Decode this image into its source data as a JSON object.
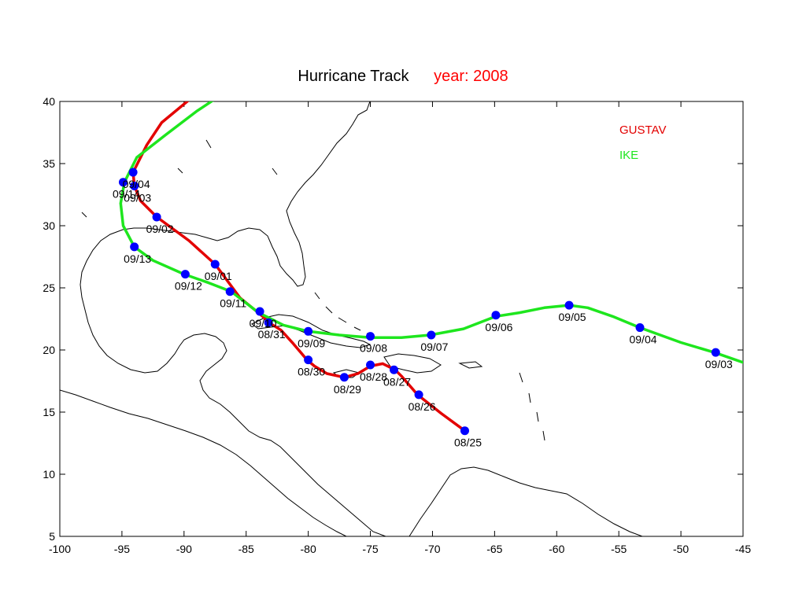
{
  "title": {
    "main": "Hurricane  Track",
    "year": "year: 2008"
  },
  "colors": {
    "gustav": "#e30000",
    "ike": "#1ee61e",
    "marker": "#0000ff",
    "year": "#ff0000"
  },
  "chart_data": {
    "type": "line",
    "xlim": [
      -100,
      -45
    ],
    "ylim": [
      5,
      40
    ],
    "x_ticks": [
      "-100",
      "-95",
      "-90",
      "-85",
      "-80",
      "-75",
      "-70",
      "-65",
      "-60",
      "-55",
      "-50",
      "-45"
    ],
    "y_ticks": [
      "5",
      "10",
      "15",
      "20",
      "25",
      "30",
      "35",
      "40"
    ],
    "legend": {
      "placement": "top-right"
    },
    "series": [
      {
        "name": "GUSTAV",
        "color": "#e30000",
        "track": [
          [
            -67.4,
            13.5
          ],
          [
            -69.3,
            14.9
          ],
          [
            -71.2,
            16.4
          ],
          [
            -72.5,
            17.9
          ],
          [
            -73.0,
            18.4
          ],
          [
            -74.0,
            18.9
          ],
          [
            -75.0,
            18.7
          ],
          [
            -76.0,
            18.1
          ],
          [
            -77.1,
            17.8
          ],
          [
            -78.5,
            18.1
          ],
          [
            -79.5,
            18.7
          ],
          [
            -80.1,
            19.2
          ],
          [
            -81.2,
            20.5
          ],
          [
            -82.2,
            21.6
          ],
          [
            -83.0,
            22.1
          ],
          [
            -83.9,
            22.9
          ],
          [
            -85.5,
            24.2
          ],
          [
            -87.5,
            26.9
          ],
          [
            -89.6,
            28.8
          ],
          [
            -92.2,
            30.7
          ],
          [
            -93.5,
            32.0
          ],
          [
            -94.0,
            33.2
          ],
          [
            -94.1,
            34.3
          ],
          [
            -93.0,
            36.5
          ],
          [
            -91.8,
            38.3
          ],
          [
            -89.5,
            40.2
          ]
        ],
        "points": [
          {
            "label": "08/25",
            "lon": -67.4,
            "lat": 13.5
          },
          {
            "label": "08/26",
            "lon": -71.1,
            "lat": 16.4
          },
          {
            "label": "08/27",
            "lon": -73.1,
            "lat": 18.4
          },
          {
            "label": "08/28",
            "lon": -75.0,
            "lat": 18.8
          },
          {
            "label": "08/29",
            "lon": -77.1,
            "lat": 17.8
          },
          {
            "label": "08/30",
            "lon": -80.0,
            "lat": 19.2
          },
          {
            "label": "08/31",
            "lon": -83.2,
            "lat": 22.2
          },
          {
            "label": "09/01",
            "lon": -87.5,
            "lat": 26.9
          },
          {
            "label": "09/02",
            "lon": -92.2,
            "lat": 30.7
          },
          {
            "label": "09/03",
            "lon": -94.0,
            "lat": 33.2
          },
          {
            "label": "09/04",
            "lon": -94.1,
            "lat": 34.3
          }
        ]
      },
      {
        "name": "IKE",
        "color": "#1ee61e",
        "track": [
          [
            -45.0,
            19.0
          ],
          [
            -47.3,
            19.8
          ],
          [
            -50.0,
            20.6
          ],
          [
            -53.3,
            21.8
          ],
          [
            -55.5,
            22.7
          ],
          [
            -57.5,
            23.4
          ],
          [
            -59.0,
            23.6
          ],
          [
            -61.0,
            23.4
          ],
          [
            -63.0,
            23.0
          ],
          [
            -64.9,
            22.7
          ],
          [
            -67.5,
            21.7
          ],
          [
            -70.2,
            21.2
          ],
          [
            -72.5,
            21.0
          ],
          [
            -75.0,
            21.0
          ],
          [
            -77.5,
            21.2
          ],
          [
            -80.0,
            21.5
          ],
          [
            -82.0,
            22.0
          ],
          [
            -84.0,
            23.0
          ],
          [
            -86.2,
            24.7
          ],
          [
            -88.0,
            25.4
          ],
          [
            -90.0,
            26.1
          ],
          [
            -92.5,
            27.2
          ],
          [
            -94.0,
            28.3
          ],
          [
            -94.9,
            30.0
          ],
          [
            -95.1,
            31.8
          ],
          [
            -94.8,
            33.5
          ],
          [
            -93.8,
            35.5
          ],
          [
            -91.5,
            37.3
          ],
          [
            -89.0,
            39.2
          ],
          [
            -87.5,
            40.2
          ]
        ],
        "points": [
          {
            "label": "09/03",
            "lon": -47.2,
            "lat": 19.8
          },
          {
            "label": "09/04",
            "lon": -53.3,
            "lat": 21.8
          },
          {
            "label": "09/05",
            "lon": -59.0,
            "lat": 23.6
          },
          {
            "label": "09/06",
            "lon": -64.9,
            "lat": 22.8
          },
          {
            "label": "09/07",
            "lon": -70.1,
            "lat": 21.2
          },
          {
            "label": "09/08",
            "lon": -75.0,
            "lat": 21.1
          },
          {
            "label": "09/09",
            "lon": -80.0,
            "lat": 21.5
          },
          {
            "label": "09/10",
            "lon": -83.9,
            "lat": 23.1
          },
          {
            "label": "09/11",
            "lon": -86.3,
            "lat": 24.7
          },
          {
            "label": "09/12",
            "lon": -89.9,
            "lat": 26.1
          },
          {
            "label": "09/13",
            "lon": -94.0,
            "lat": 28.3
          },
          {
            "label": "09/14",
            "lon": -94.9,
            "lat": 33.5
          }
        ]
      }
    ]
  }
}
